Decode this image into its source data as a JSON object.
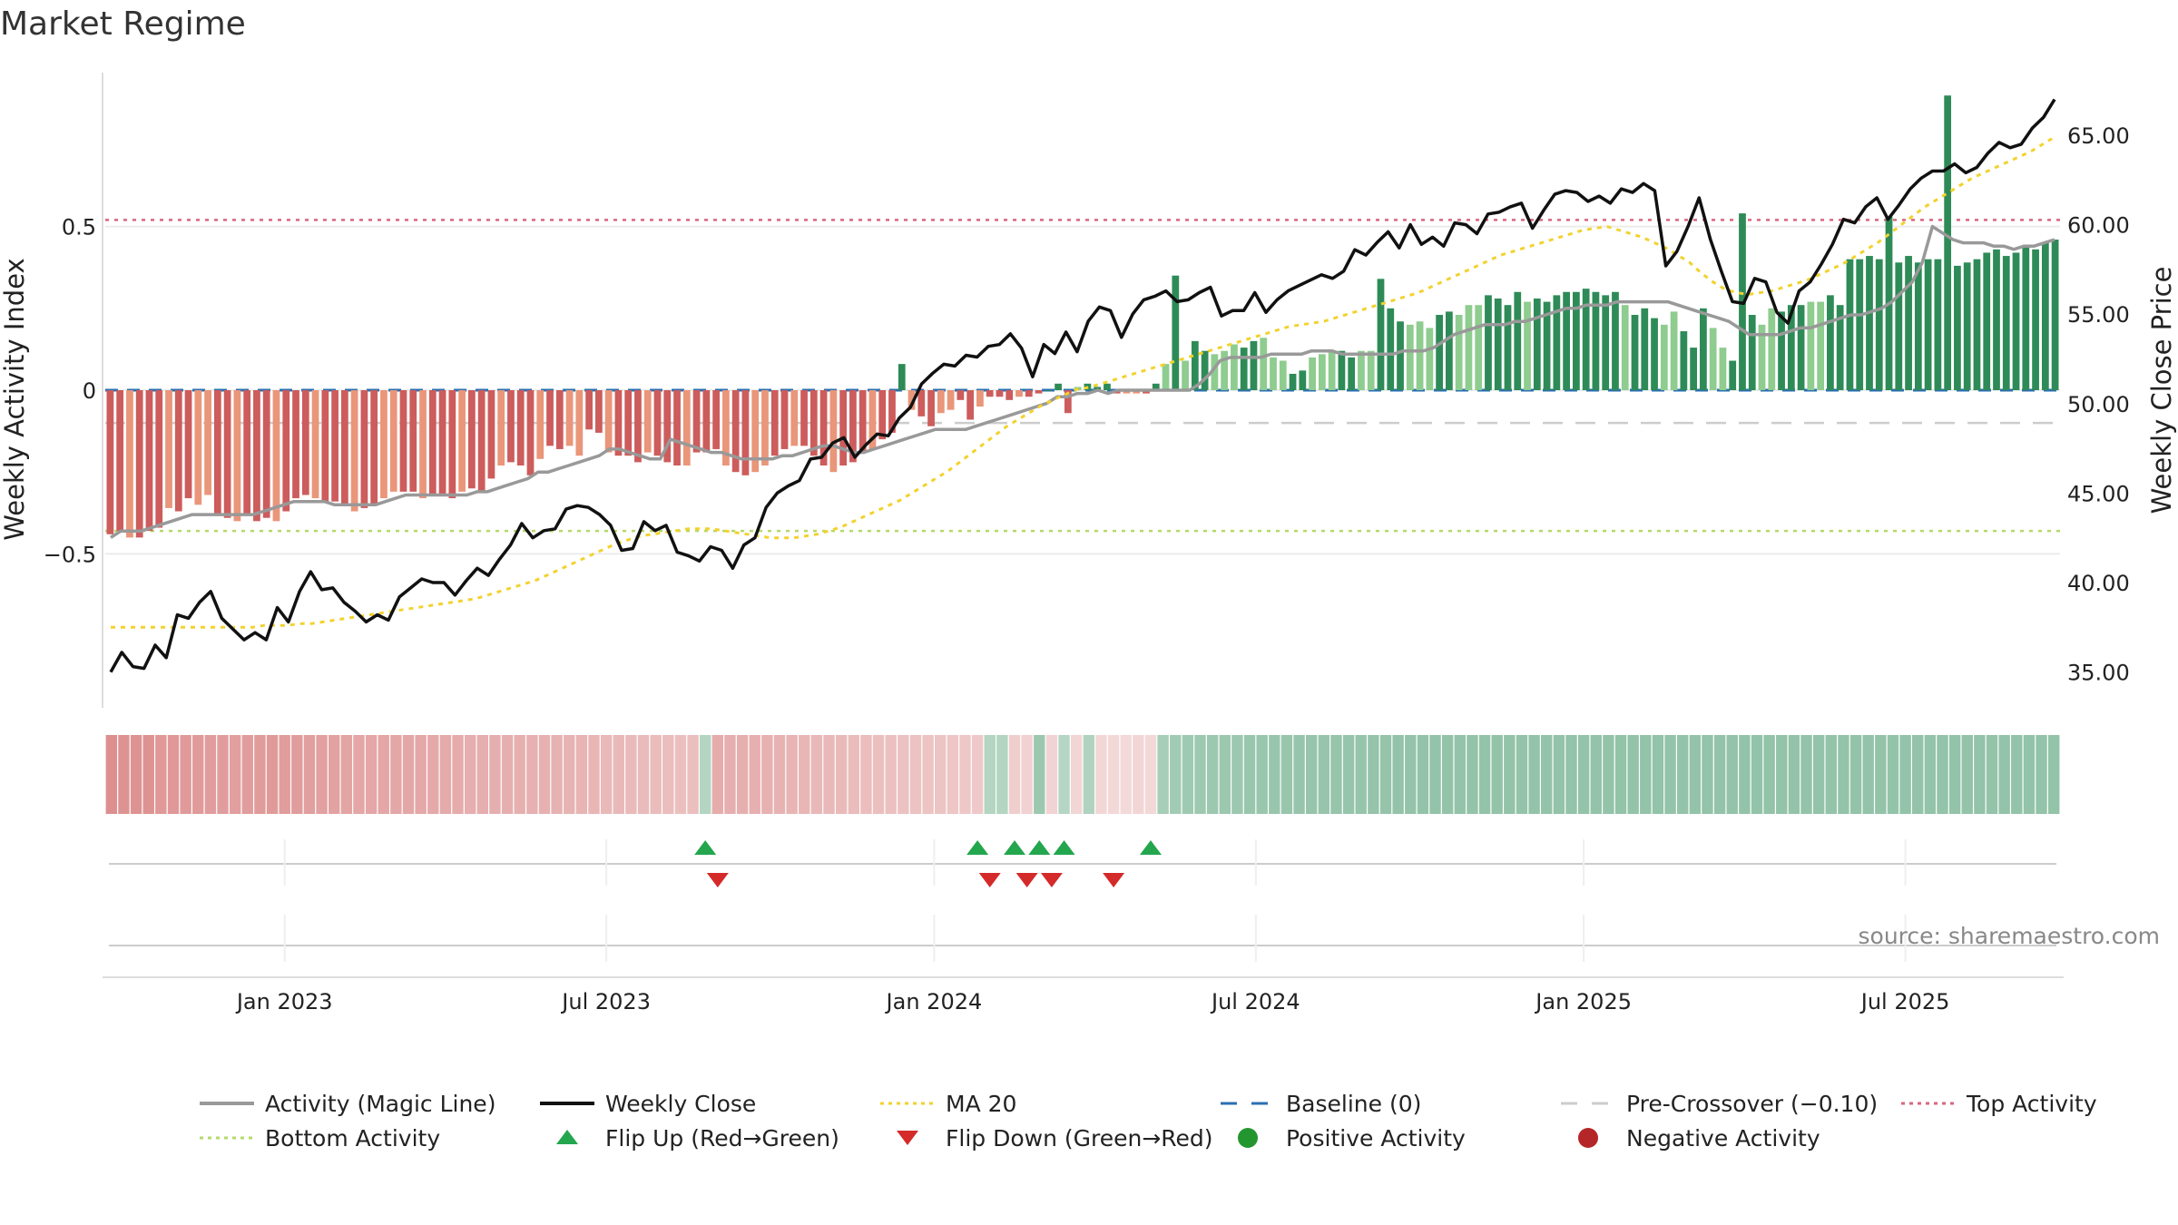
{
  "chart_data": {
    "type": "bar",
    "title": "Market Regime",
    "y_left_label": "Weekly Activity Index",
    "y_right_label": "Weekly Close Price",
    "y_left_ticks": [
      "0.5",
      "0",
      "−0.5"
    ],
    "y_left_tick_values": [
      0.5,
      0,
      -0.5
    ],
    "y_left_range": [
      -0.97,
      0.97
    ],
    "y_right_ticks": [
      "65.00",
      "60.00",
      "55.00",
      "50.00",
      "45.00",
      "40.00",
      "35.00"
    ],
    "y_right_tick_values": [
      65,
      60,
      55,
      50,
      45,
      40,
      35
    ],
    "y_right_range": [
      33.0,
      68.5
    ],
    "x_ticks": [
      "Jan 2023",
      "Jul 2023",
      "Jan 2024",
      "Jul 2024",
      "Jan 2025",
      "Jul 2025"
    ],
    "x_tick_weeks": [
      14,
      40,
      66.5,
      92.5,
      119,
      145
    ],
    "weeks_count": 158,
    "source": "source: sharemaestro.com",
    "reference_lines": {
      "top_activity": 0.52,
      "bottom_activity": -0.43,
      "baseline": 0,
      "pre_crossover": -0.1
    },
    "colors": {
      "strong_negative": "#cd5c5c",
      "weak_negative": "#e9967a",
      "strong_positive": "#2e8b57",
      "weak_positive": "#8fcc8f",
      "magic_line": "#999999",
      "weekly_close": "#111111",
      "ma20": "#f2d22e",
      "baseline": "#2a6fb0",
      "pre_crossover": "#cccccc",
      "top_activity": "#d9667f",
      "bottom_activity": "#b5d96a",
      "flip_up": "#23a64d",
      "flip_down": "#d42a2a",
      "positive_dot": "#23962f",
      "negative_dot": "#b52628"
    },
    "activity": [
      -0.44,
      -0.43,
      -0.45,
      -0.45,
      -0.43,
      -0.42,
      -0.36,
      -0.37,
      -0.33,
      -0.35,
      -0.32,
      -0.38,
      -0.39,
      -0.4,
      -0.38,
      -0.4,
      -0.39,
      -0.4,
      -0.37,
      -0.33,
      -0.32,
      -0.33,
      -0.34,
      -0.34,
      -0.35,
      -0.37,
      -0.36,
      -0.35,
      -0.33,
      -0.31,
      -0.31,
      -0.31,
      -0.33,
      -0.32,
      -0.32,
      -0.33,
      -0.31,
      -0.3,
      -0.31,
      -0.27,
      -0.23,
      -0.22,
      -0.23,
      -0.26,
      -0.21,
      -0.17,
      -0.18,
      -0.17,
      -0.2,
      -0.12,
      -0.13,
      -0.19,
      -0.2,
      -0.2,
      -0.22,
      -0.19,
      -0.2,
      -0.22,
      -0.23,
      -0.23,
      -0.19,
      -0.19,
      -0.18,
      -0.23,
      -0.25,
      -0.26,
      -0.25,
      -0.23,
      -0.2,
      -0.18,
      -0.17,
      -0.17,
      -0.2,
      -0.23,
      -0.25,
      -0.23,
      -0.22,
      -0.19,
      -0.18,
      -0.15,
      -0.13,
      0.08,
      -0.06,
      -0.08,
      -0.11,
      -0.07,
      -0.06,
      -0.03,
      -0.09,
      -0.05,
      -0.02,
      -0.02,
      -0.03,
      -0.02,
      -0.02,
      -0.01,
      0.0,
      0.02,
      -0.07,
      0.01,
      0.02,
      0.01,
      0.02,
      -0.01,
      -0.01,
      -0.01,
      -0.01,
      0.02,
      0.08,
      0.35,
      0.09,
      0.15,
      0.12,
      0.11,
      0.12,
      0.14,
      0.13,
      0.15,
      0.16,
      0.1,
      0.09,
      0.05,
      0.06,
      0.1,
      0.11,
      0.12,
      0.12,
      0.1,
      0.12,
      0.12,
      0.34,
      0.25,
      0.21,
      0.2,
      0.21,
      0.19,
      0.23,
      0.24,
      0.23,
      0.26,
      0.26,
      0.29,
      0.28,
      0.26,
      0.3,
      0.27,
      0.28,
      0.27,
      0.29,
      0.3,
      0.3,
      0.31,
      0.3,
      0.29,
      0.3,
      0.26,
      0.23,
      0.25,
      0.22,
      0.2,
      0.24,
      0.18,
      0.13,
      0.25,
      0.19,
      0.13,
      0.09,
      0.54,
      0.23,
      0.2,
      0.25,
      0.24,
      0.26,
      0.26,
      0.27,
      0.27,
      0.29,
      0.26,
      0.4,
      0.4,
      0.41,
      0.4,
      0.53,
      0.39,
      0.41,
      0.39,
      0.4,
      0.4,
      0.9,
      0.38,
      0.39,
      0.4,
      0.42,
      0.43,
      0.41,
      0.42,
      0.44,
      0.43,
      0.45,
      0.46
    ],
    "magic_line": [
      -0.45,
      -0.43,
      -0.43,
      -0.43,
      -0.42,
      -0.41,
      -0.4,
      -0.39,
      -0.38,
      -0.38,
      -0.38,
      -0.38,
      -0.38,
      -0.38,
      -0.38,
      -0.37,
      -0.36,
      -0.35,
      -0.34,
      -0.34,
      -0.34,
      -0.34,
      -0.35,
      -0.35,
      -0.35,
      -0.35,
      -0.35,
      -0.34,
      -0.33,
      -0.32,
      -0.32,
      -0.32,
      -0.32,
      -0.32,
      -0.32,
      -0.32,
      -0.31,
      -0.31,
      -0.3,
      -0.29,
      -0.28,
      -0.27,
      -0.25,
      -0.25,
      -0.24,
      -0.23,
      -0.22,
      -0.21,
      -0.2,
      -0.18,
      -0.18,
      -0.19,
      -0.2,
      -0.21,
      -0.21,
      -0.15,
      -0.16,
      -0.17,
      -0.18,
      -0.19,
      -0.19,
      -0.2,
      -0.21,
      -0.21,
      -0.21,
      -0.21,
      -0.2,
      -0.2,
      -0.19,
      -0.18,
      -0.17,
      -0.17,
      -0.18,
      -0.19,
      -0.19,
      -0.18,
      -0.17,
      -0.16,
      -0.15,
      -0.14,
      -0.13,
      -0.12,
      -0.12,
      -0.12,
      -0.12,
      -0.11,
      -0.1,
      -0.09,
      -0.08,
      -0.07,
      -0.06,
      -0.05,
      -0.04,
      -0.02,
      -0.02,
      -0.01,
      -0.01,
      0.0,
      -0.01,
      0.0,
      0.0,
      0.0,
      0.0,
      0.0,
      0.0,
      0.0,
      0.0,
      0.02,
      0.05,
      0.09,
      0.1,
      0.1,
      0.1,
      0.1,
      0.11,
      0.11,
      0.11,
      0.11,
      0.12,
      0.12,
      0.12,
      0.11,
      0.11,
      0.11,
      0.11,
      0.11,
      0.11,
      0.12,
      0.12,
      0.12,
      0.13,
      0.15,
      0.17,
      0.18,
      0.19,
      0.2,
      0.2,
      0.2,
      0.21,
      0.21,
      0.22,
      0.23,
      0.24,
      0.25,
      0.25,
      0.26,
      0.26,
      0.26,
      0.27,
      0.27,
      0.27,
      0.27,
      0.27,
      0.27,
      0.26,
      0.25,
      0.24,
      0.23,
      0.22,
      0.21,
      0.19,
      0.17,
      0.17,
      0.17,
      0.17,
      0.18,
      0.19,
      0.19,
      0.2,
      0.21,
      0.22,
      0.23,
      0.23,
      0.24,
      0.25,
      0.27,
      0.3,
      0.33,
      0.39,
      0.5,
      0.48,
      0.46,
      0.45,
      0.45,
      0.45,
      0.44,
      0.44,
      0.43,
      0.44,
      0.44,
      0.45,
      0.46
    ],
    "weekly_close": [
      35.0,
      36.1,
      35.3,
      35.2,
      36.5,
      35.8,
      38.2,
      38.0,
      38.9,
      39.5,
      38.0,
      37.4,
      36.8,
      37.2,
      36.8,
      38.6,
      37.8,
      39.5,
      40.6,
      39.6,
      39.7,
      38.9,
      38.4,
      37.8,
      38.2,
      37.9,
      39.2,
      39.7,
      40.2,
      40.0,
      40.0,
      39.3,
      40.1,
      40.8,
      40.4,
      41.3,
      42.1,
      43.3,
      42.5,
      42.9,
      43.0,
      44.1,
      44.3,
      44.2,
      43.8,
      43.2,
      41.8,
      41.9,
      43.4,
      42.9,
      43.2,
      41.7,
      41.5,
      41.2,
      42.0,
      41.8,
      40.8,
      42.1,
      42.5,
      44.2,
      45.0,
      45.4,
      45.7,
      46.9,
      47.0,
      47.8,
      48.1,
      47.0,
      47.7,
      48.3,
      48.2,
      49.2,
      49.8,
      51.1,
      51.7,
      52.2,
      52.1,
      52.7,
      52.6,
      53.2,
      53.3,
      53.9,
      53.1,
      51.5,
      53.3,
      52.8,
      54.0,
      52.9,
      54.6,
      55.4,
      55.2,
      53.7,
      55.0,
      55.8,
      56.0,
      56.3,
      55.7,
      55.8,
      56.2,
      56.5,
      54.9,
      55.2,
      55.2,
      56.2,
      55.1,
      55.8,
      56.3,
      56.6,
      56.9,
      57.2,
      57.0,
      57.4,
      58.6,
      58.3,
      59.0,
      59.6,
      58.7,
      60.0,
      58.9,
      59.3,
      58.8,
      60.1,
      60.0,
      59.5,
      60.6,
      60.7,
      61.0,
      61.2,
      59.8,
      60.8,
      61.7,
      61.9,
      61.8,
      61.3,
      61.6,
      61.2,
      62.0,
      61.8,
      62.3,
      61.9,
      57.7,
      58.5,
      59.9,
      61.5,
      59.2,
      57.4,
      55.7,
      55.6,
      57.0,
      56.8,
      55.1,
      54.5,
      56.3,
      56.8,
      57.8,
      58.9,
      60.3,
      60.1,
      61.0,
      61.5,
      60.3,
      61.1,
      62.0,
      62.6,
      63.0,
      63.0,
      63.4,
      62.9,
      63.2,
      64.0,
      64.6,
      64.3,
      64.5,
      65.4,
      66.0,
      67.0
    ],
    "ma20": [
      37.5,
      37.5,
      37.5,
      37.5,
      37.5,
      37.5,
      37.5,
      37.5,
      37.5,
      37.5,
      37.5,
      37.5,
      37.5,
      37.6,
      37.6,
      37.6,
      37.7,
      37.7,
      37.8,
      37.9,
      38.0,
      38.1,
      38.2,
      38.3,
      38.4,
      38.5,
      38.6,
      38.7,
      38.8,
      38.9,
      39.0,
      39.1,
      39.3,
      39.5,
      39.7,
      39.9,
      40.1,
      40.4,
      40.7,
      41.0,
      41.3,
      41.6,
      41.9,
      42.2,
      42.4,
      42.6,
      42.7,
      42.8,
      42.9,
      43.0,
      43.0,
      43.0,
      42.9,
      42.8,
      42.7,
      42.6,
      42.5,
      42.5,
      42.5,
      42.6,
      42.7,
      42.9,
      43.1,
      43.4,
      43.7,
      44.0,
      44.3,
      44.6,
      45.0,
      45.4,
      45.8,
      46.2,
      46.7,
      47.2,
      47.7,
      48.2,
      48.7,
      49.1,
      49.5,
      49.9,
      50.2,
      50.5,
      50.8,
      50.9,
      51.1,
      51.3,
      51.5,
      51.7,
      51.9,
      52.1,
      52.3,
      52.5,
      52.7,
      52.9,
      53.1,
      53.3,
      53.5,
      53.7,
      53.9,
      54.1,
      54.3,
      54.4,
      54.5,
      54.6,
      54.8,
      55.0,
      55.2,
      55.4,
      55.6,
      55.8,
      56.0,
      56.2,
      56.5,
      56.8,
      57.1,
      57.4,
      57.7,
      58.0,
      58.3,
      58.5,
      58.7,
      58.9,
      59.1,
      59.3,
      59.5,
      59.7,
      59.8,
      59.9,
      59.7,
      59.5,
      59.3,
      59.0,
      58.7,
      58.3,
      57.9,
      57.3,
      56.8,
      56.4,
      56.2,
      56.1,
      56.2,
      56.3,
      56.5,
      56.7,
      56.9,
      57.2,
      57.5,
      57.8,
      58.2,
      58.6,
      59.0,
      59.5,
      60.0,
      60.5,
      61.0,
      61.4,
      61.8,
      62.2,
      62.6,
      62.9,
      63.2,
      63.5,
      63.8,
      64.1,
      64.5,
      64.9
    ],
    "regime_strip": [
      -0.9,
      -0.85,
      -0.85,
      -0.85,
      -0.8,
      -0.8,
      -0.78,
      -0.78,
      -0.75,
      -0.75,
      -0.73,
      -0.75,
      -0.77,
      -0.78,
      -0.76,
      -0.75,
      -0.73,
      -0.72,
      -0.7,
      -0.68,
      -0.66,
      -0.66,
      -0.66,
      -0.65,
      -0.65,
      -0.64,
      -0.63,
      -0.62,
      -0.6,
      -0.58,
      -0.58,
      -0.57,
      -0.57,
      -0.56,
      -0.55,
      -0.55,
      -0.54,
      -0.53,
      -0.52,
      -0.5,
      -0.48,
      -0.47,
      -0.46,
      -0.45,
      -0.44,
      -0.42,
      -0.4,
      -0.4,
      0.3,
      -0.6,
      -0.58,
      -0.57,
      -0.56,
      -0.55,
      -0.54,
      -0.52,
      -0.5,
      -0.48,
      -0.48,
      -0.46,
      -0.44,
      -0.42,
      -0.4,
      -0.39,
      -0.38,
      -0.37,
      -0.36,
      -0.35,
      -0.33,
      -0.32,
      -0.3,
      0.3,
      0.3,
      -0.25,
      -0.22,
      0.5,
      -0.2,
      0.28,
      -0.18,
      0.32,
      -0.16,
      -0.15,
      -0.14,
      -0.18,
      -0.15,
      0.4,
      0.45,
      0.47,
      0.48,
      0.5,
      0.5,
      0.5,
      0.52,
      0.52,
      0.53,
      0.53,
      0.54,
      0.54,
      0.55,
      0.55,
      0.55,
      0.55,
      0.56,
      0.56,
      0.57,
      0.57,
      0.58,
      0.58,
      0.58,
      0.58,
      0.58,
      0.58,
      0.58,
      0.58,
      0.58,
      0.58,
      0.58,
      0.58,
      0.58,
      0.58,
      0.58,
      0.58,
      0.58,
      0.58,
      0.58,
      0.58,
      0.58,
      0.58,
      0.58,
      0.58,
      0.58,
      0.58,
      0.58,
      0.58,
      0.58,
      0.58,
      0.58,
      0.58,
      0.58,
      0.58,
      0.58,
      0.58,
      0.58,
      0.58,
      0.58,
      0.58,
      0.58,
      0.58,
      0.58,
      0.58,
      0.58,
      0.58,
      0.58,
      0.58,
      0.58,
      0.58,
      0.58,
      0.58
    ],
    "flip_up_weeks": [
      48,
      70,
      73,
      75,
      77,
      84
    ],
    "flip_down_weeks": [
      49,
      71,
      74,
      76,
      81
    ],
    "legend": [
      {
        "label": "Activity (Magic Line)",
        "kind": "line",
        "color": "#999999"
      },
      {
        "label": "Weekly Close",
        "kind": "line",
        "color": "#111111"
      },
      {
        "label": "MA 20",
        "kind": "dotted",
        "color": "#f2d22e"
      },
      {
        "label": "Baseline (0)",
        "kind": "dashed",
        "color": "#2a6fb0"
      },
      {
        "label": "Pre-Crossover (−0.10)",
        "kind": "dashed",
        "color": "#cccccc"
      },
      {
        "label": "Top Activity",
        "kind": "dotted",
        "color": "#d9667f"
      },
      {
        "label": "Bottom Activity",
        "kind": "dotted",
        "color": "#b5d96a"
      },
      {
        "label": "Flip Up (Red→Green)",
        "kind": "tri-up",
        "color": "#23a64d"
      },
      {
        "label": "Flip Down (Green→Red)",
        "kind": "tri-down",
        "color": "#d42a2a"
      },
      {
        "label": "Positive Activity",
        "kind": "dot",
        "color": "#23962f"
      },
      {
        "label": "Negative Activity",
        "kind": "dot",
        "color": "#b52628"
      }
    ]
  }
}
